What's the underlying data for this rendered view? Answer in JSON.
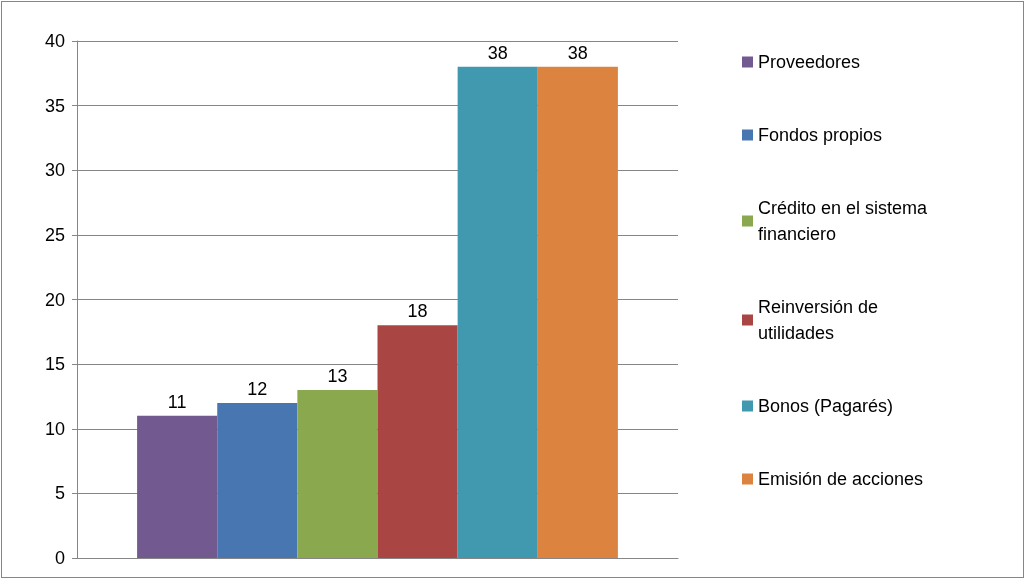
{
  "chart_data": {
    "type": "bar",
    "categories": [
      null
    ],
    "series": [
      {
        "name": "Proveedores",
        "color": "#725990",
        "values": [
          11
        ]
      },
      {
        "name": "Fondos propios",
        "color": "#4876b0",
        "values": [
          12
        ]
      },
      {
        "name": "Crédito en el sistema financiero",
        "color": "#8aa84e",
        "values": [
          13
        ]
      },
      {
        "name": "Reinversión de utilidades",
        "color": "#a94643",
        "values": [
          18
        ]
      },
      {
        "name": "Bonos (Pagarés)",
        "color": "#4199b0",
        "values": [
          38
        ]
      },
      {
        "name": "Emisión de acciones",
        "color": "#dc843f",
        "values": [
          38
        ]
      }
    ],
    "ylim": [
      0,
      40
    ],
    "yticks": [
      0,
      5,
      10,
      15,
      20,
      25,
      30,
      35,
      40
    ],
    "grid": "y",
    "legend": "right",
    "data_labels": true
  }
}
